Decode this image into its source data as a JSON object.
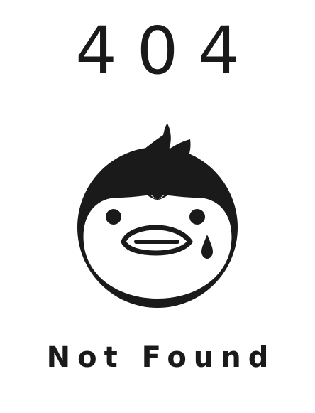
{
  "error": {
    "code": "404",
    "message": "Not Found"
  },
  "mascot": {
    "icon": "crying-penguin-icon"
  },
  "colors": {
    "ink": "#1a1a1a",
    "background": "#ffffff"
  }
}
